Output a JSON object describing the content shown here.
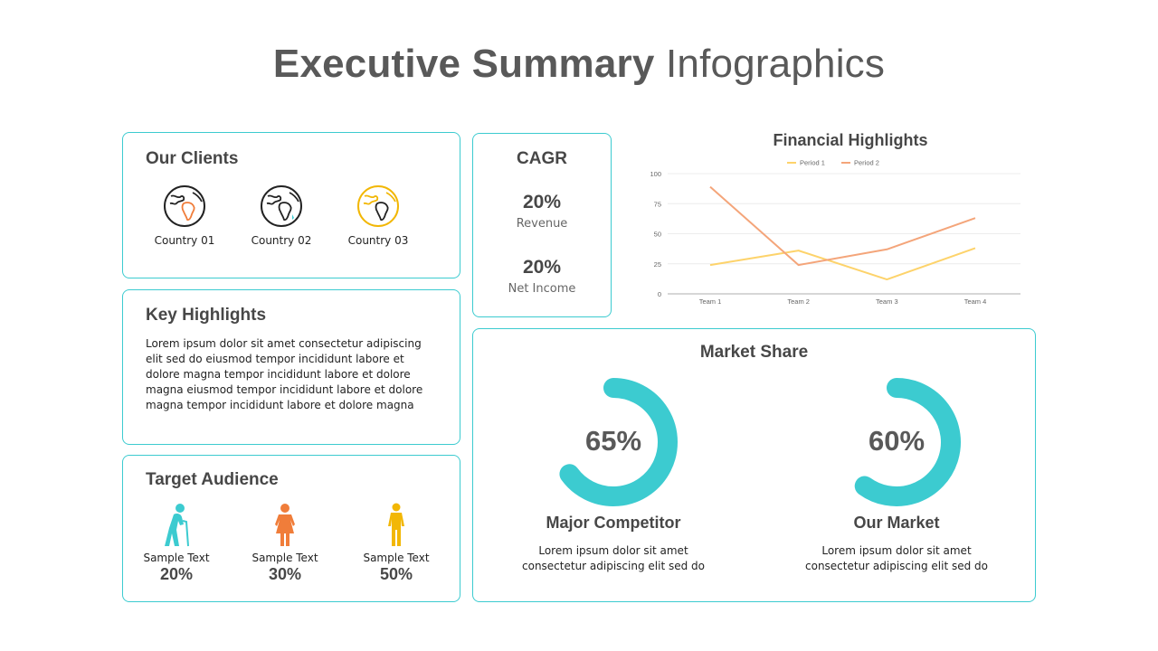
{
  "title": {
    "bold": "Executive Summary",
    "regular": "Infographics"
  },
  "clients": {
    "title": "Our Clients",
    "items": [
      {
        "label": "Country 01",
        "accent": "#f07d3a",
        "icon": "globe-africa-icon"
      },
      {
        "label": "Country 02",
        "accent": "#3ccbd0",
        "icon": "globe-africa-icon"
      },
      {
        "label": "Country 03",
        "accent": "#f2b705",
        "icon": "globe-africa-icon"
      }
    ]
  },
  "highlights": {
    "title": "Key Highlights",
    "text": "Lorem ipsum dolor sit amet consectetur adipiscing elit sed do eiusmod tempor incididunt  labore et dolore magna tempor incididunt  labore et dolore magna eiusmod tempor incididunt  labore et dolore magna tempor incididunt  labore et dolore magna"
  },
  "audience": {
    "title": "Target Audience",
    "items": [
      {
        "label": "Sample Text",
        "value": "20%",
        "color": "#3ccbd0",
        "icon": "elderly-person-icon"
      },
      {
        "label": "Sample Text",
        "value": "30%",
        "color": "#f07d3a",
        "icon": "woman-icon"
      },
      {
        "label": "Sample Text",
        "value": "50%",
        "color": "#f2b705",
        "icon": "child-icon"
      }
    ]
  },
  "cagr": {
    "title": "CAGR",
    "items": [
      {
        "value": "20%",
        "label": "Revenue"
      },
      {
        "value": "20%",
        "label": "Net Income"
      }
    ]
  },
  "chart_data": {
    "type": "line",
    "title": "Financial Highlights",
    "categories": [
      "Team 1",
      "Team 2",
      "Team 3",
      "Team 4"
    ],
    "series": [
      {
        "name": "Period 1",
        "color": "#fdd36b",
        "values": [
          24,
          36,
          12,
          38
        ]
      },
      {
        "name": "Period 2",
        "color": "#f4a57a",
        "values": [
          89,
          24,
          37,
          63
        ]
      }
    ],
    "yticks": [
      0,
      25,
      50,
      75,
      100
    ],
    "ylim": [
      0,
      100
    ],
    "grid": true,
    "legend": "top"
  },
  "market": {
    "title": "Market Share",
    "color": "#3ccbd0",
    "items": [
      {
        "value": "65%",
        "fraction": 0.65,
        "name": "Major Competitor",
        "desc_line1": "Lorem ipsum dolor sit amet",
        "desc_line2": "consectetur adipiscing elit sed do"
      },
      {
        "value": "60%",
        "fraction": 0.6,
        "name": "Our Market",
        "desc_line1": "Lorem ipsum dolor sit amet",
        "desc_line2": "consectetur adipiscing elit sed do"
      }
    ]
  }
}
